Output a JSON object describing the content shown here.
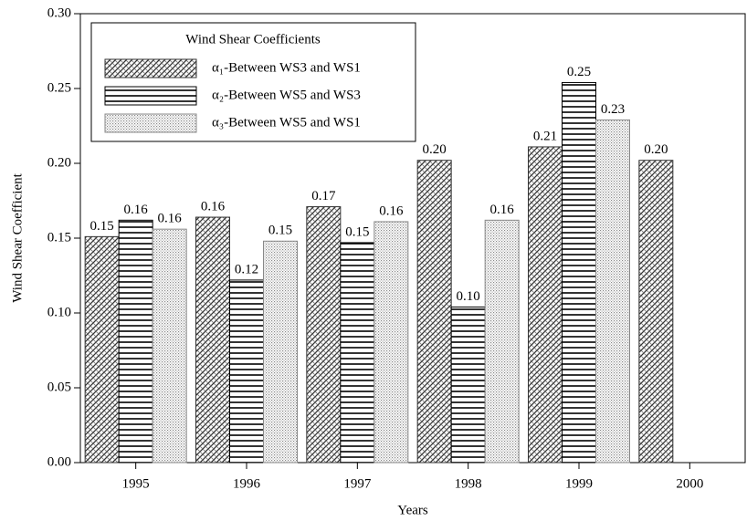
{
  "chart_data": {
    "type": "bar",
    "xlabel": "Years",
    "ylabel": "Wind Shear Coefficient",
    "legend_title": "Wind Shear Coefficients",
    "legend": "upper left",
    "categories": [
      "1995",
      "1996",
      "1997",
      "1998",
      "1999",
      "2000"
    ],
    "series": [
      {
        "name": "α₁-Between WS3 and WS1",
        "color": "#333333",
        "values": [
          0.151,
          0.164,
          0.171,
          0.202,
          0.211,
          0.202
        ],
        "value_labels": [
          "0.15",
          "0.16",
          "0.17",
          "0.20",
          "0.21",
          "0.20"
        ]
      },
      {
        "name": "α₂-Between WS5 and WS3",
        "color": "#000000",
        "values": [
          0.162,
          0.122,
          0.147,
          0.104,
          0.254,
          null
        ],
        "value_labels": [
          "0.16",
          "0.12",
          "0.15",
          "0.10",
          "0.25",
          null
        ]
      },
      {
        "name": "α₃-Between WS5 and WS1",
        "color": "#888888",
        "values": [
          0.156,
          0.148,
          0.161,
          0.162,
          0.229,
          null
        ],
        "value_labels": [
          "0.16",
          "0.15",
          "0.16",
          "0.16",
          "0.23",
          null
        ]
      }
    ],
    "ylim": [
      0,
      0.3
    ],
    "yticks": [
      {
        "value": 0,
        "label": "0.00"
      },
      0.05,
      {
        "value": 0.1,
        "label": "0.10"
      },
      0.15,
      {
        "value": 0.2,
        "label": "0.20"
      },
      0.25,
      {
        "value": 0.3,
        "label": "0.30"
      }
    ]
  }
}
